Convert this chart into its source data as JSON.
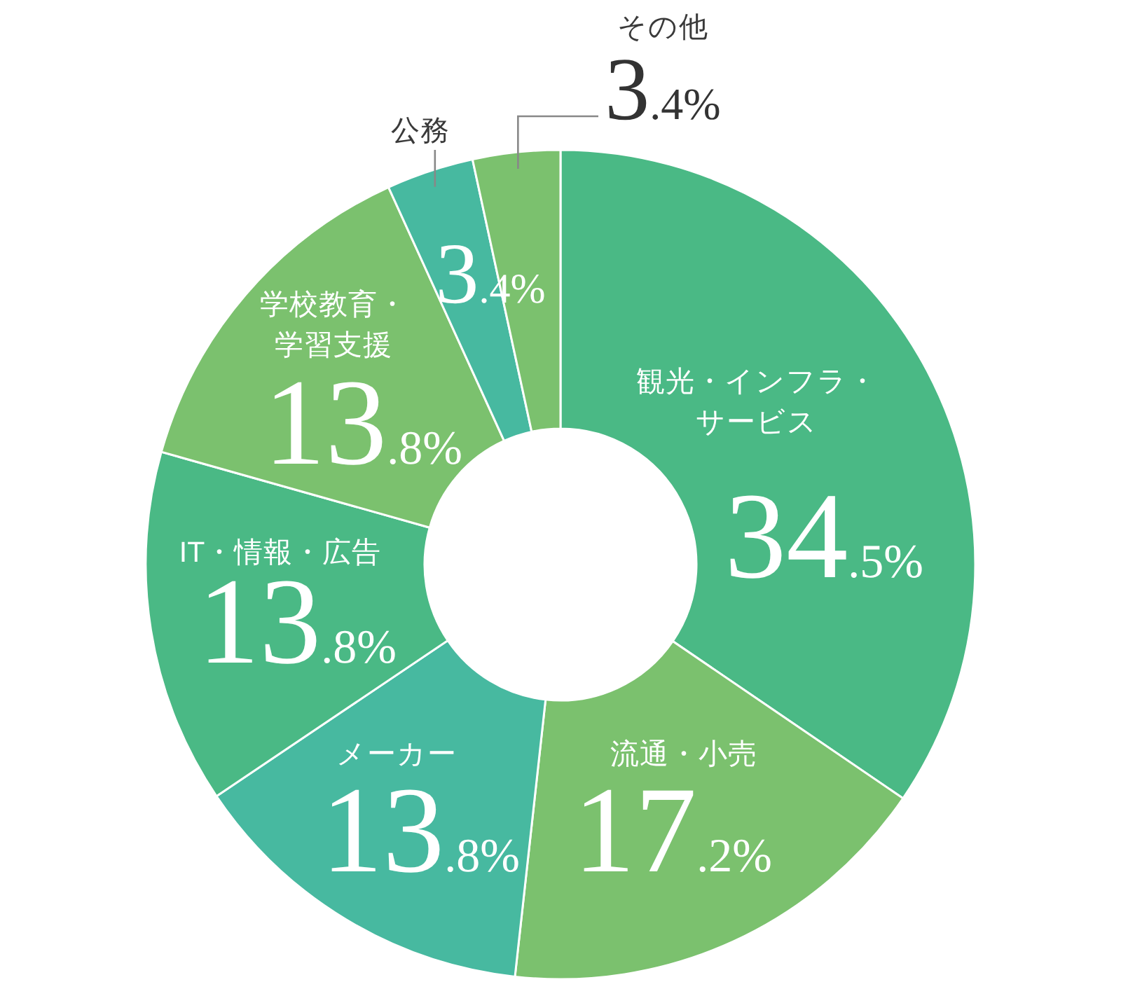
{
  "chart_data": {
    "type": "donut",
    "categories": [
      "観光・インフラ・サービス",
      "流通・小売",
      "メーカー",
      "IT・情報・広告",
      "学校教育・学習支援",
      "公務",
      "その他"
    ],
    "values": [
      34.5,
      17.2,
      13.8,
      13.8,
      13.8,
      3.4,
      3.4
    ],
    "value_labels": [
      "34.5%",
      "17.2%",
      "13.8%",
      "13.8%",
      "13.8%",
      "3.4%",
      "3.4%"
    ],
    "colors": [
      "#4ab985",
      "#7bc16e",
      "#47b9a0",
      "#4ab985",
      "#7bc16e",
      "#47b9a0",
      "#7bc16e"
    ]
  }
}
